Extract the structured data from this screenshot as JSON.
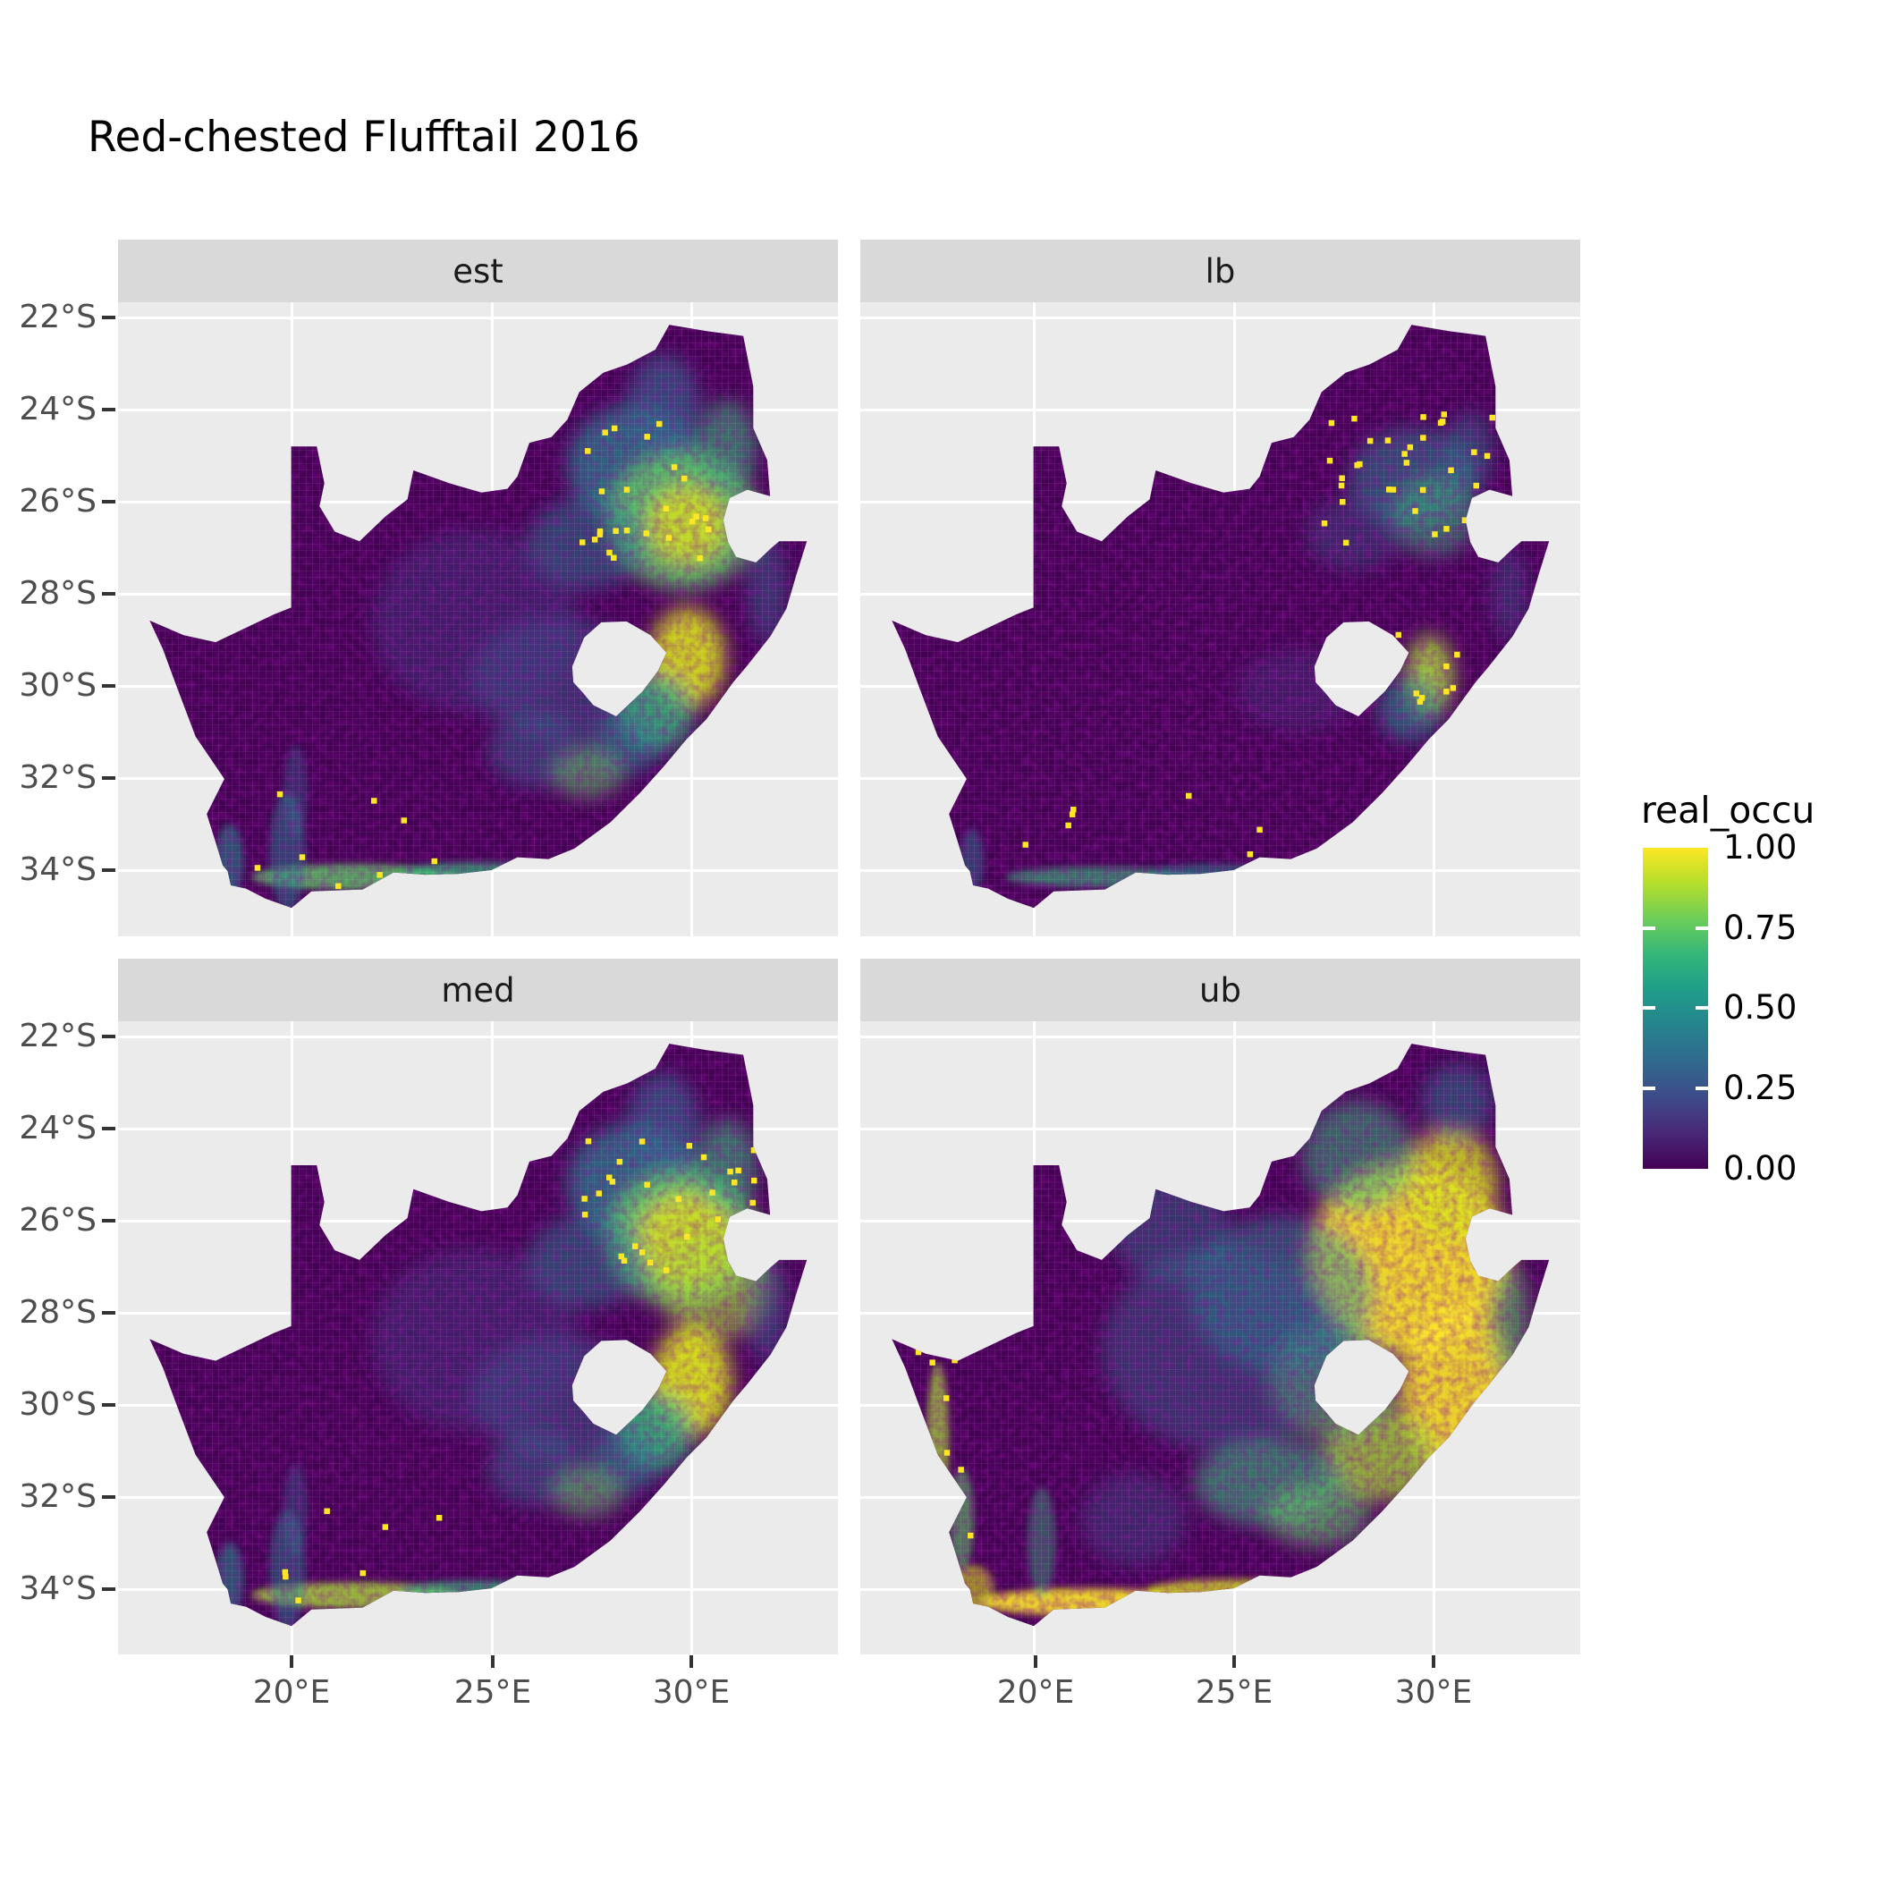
{
  "title": "Red-chested Flufftail 2016",
  "facets": [
    {
      "label": "est"
    },
    {
      "label": "lb"
    },
    {
      "label": "med"
    },
    {
      "label": "ub"
    }
  ],
  "axes": {
    "y_ticks": [
      "22°S",
      "24°S",
      "26°S",
      "28°S",
      "30°S",
      "32°S",
      "34°S"
    ],
    "x_ticks": [
      "20°E",
      "25°E",
      "30°E"
    ]
  },
  "legend": {
    "title": "real_occu",
    "tick_labels": [
      "1.00",
      "0.75",
      "0.50",
      "0.25",
      "0.00"
    ]
  },
  "colors": {
    "background": "#FFFFFF",
    "panel_bg": "#EBEBEB",
    "strip_bg": "#D9D9D9",
    "gridline": "#FFFFFF",
    "axis_text": "#4D4D4D",
    "title_text": "#000000",
    "viridis_scale": [
      "#440154",
      "#482878",
      "#3E4A89",
      "#31688E",
      "#26828E",
      "#1F9E89",
      "#35B779",
      "#6ECE58",
      "#B5DE2B",
      "#FDE725"
    ]
  },
  "chart_data": {
    "type": "heatmap",
    "subtype": "faceted raster occupancy map (ggplot2 style, viridis palette)",
    "title": "Red-chested Flufftail 2016",
    "region": "South Africa (Lesotho shown as interior hole; Eswatini as notch on eastern border)",
    "facets": [
      "est",
      "lb",
      "med",
      "ub"
    ],
    "variable": "real_occu",
    "value_range": [
      0,
      1
    ],
    "legend_breaks": [
      1.0,
      0.75,
      0.5,
      0.25,
      0.0
    ],
    "x_axis": {
      "label": "",
      "tick_labels": [
        "20°E",
        "25°E",
        "30°E"
      ],
      "approx_range_deg_E": [
        15.7,
        33.7
      ]
    },
    "y_axis": {
      "label": "",
      "tick_labels": [
        "22°S",
        "24°S",
        "26°S",
        "28°S",
        "30°S",
        "32°S",
        "34°S"
      ],
      "approx_range_deg_S": [
        21.7,
        35.4
      ]
    },
    "grid": "white major gridlines on grey panel",
    "legend_position": "right, vertical colorbar",
    "pattern_summary": {
      "est": "Mostly near-zero (dark purple) over western and central interior; moderate-high occupancy (0.5-0.9, green-yellow) over the northeastern highveld around 25-27°S 28-31°E; high band along the Drakensberg east/south of Lesotho; narrow green-yellow strip along the southern Cape coast; scattered isolated yellow cells.",
      "lb": "Lower bound, darkest facet: near-zero almost everywhere; teal-green patches on the Mpumalanga escarpment and KwaZulu-Natal midlands; bright green-yellow streak southeast of Lesotho; many small isolated yellow cells in the northeast; faint southern coastal strip.",
      "med": "Similar to est but slightly brighter: yellow-green core around 26-27°S 29-31°E; strong yellow band east and south of Lesotho; green-yellow southern coastal strip; scattered yellow cells; dark purple west.",
      "ub": "Upper bound, brightest facet: extensive near-1.0 yellow across the eastern highveld, KwaZulu-Natal and surrounding Lesotho; widespread teal-green mottling over the central interior; yellow fringes along the south and west coasts; dark purple retained in the arid northwest."
    }
  }
}
